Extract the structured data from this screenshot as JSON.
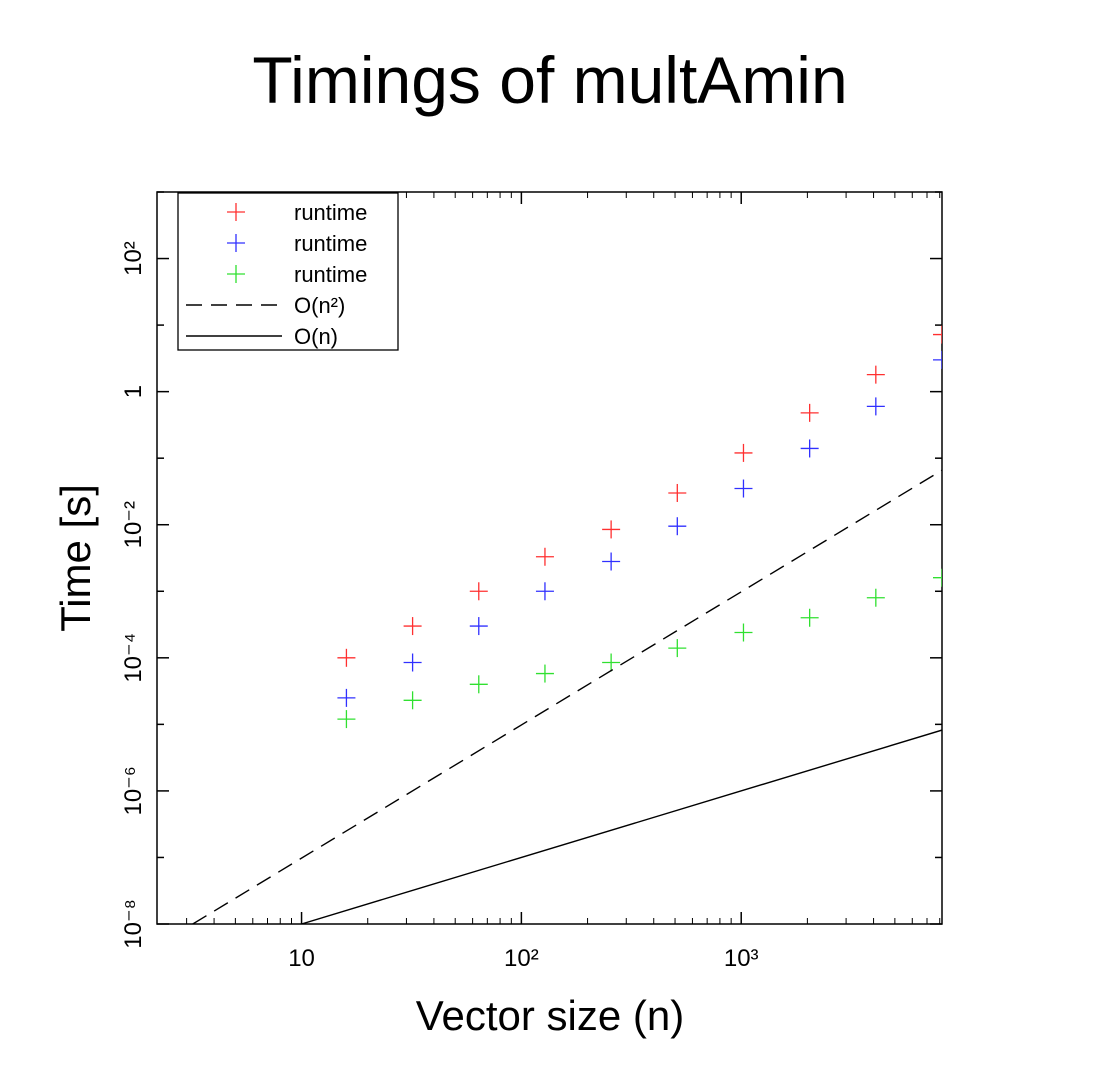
{
  "chart_data": {
    "type": "scatter",
    "title": "Timings of multAmin",
    "xlabel": "Vector size (n)",
    "ylabel": "Time [s]",
    "xscale": "log",
    "yscale": "log",
    "xlim": [
      2.2,
      8192
    ],
    "ylim": [
      1e-08,
      1000
    ],
    "grid": false,
    "legend_position": "top-left",
    "xticks": [
      {
        "value": 10,
        "label": "10"
      },
      {
        "value": 100,
        "label": "10²"
      },
      {
        "value": 1000,
        "label": "10³"
      }
    ],
    "yticks": [
      {
        "value": 1e-08,
        "label": "10⁻⁸"
      },
      {
        "value": 1e-06,
        "label": "10⁻⁶"
      },
      {
        "value": 0.0001,
        "label": "10⁻⁴"
      },
      {
        "value": 0.01,
        "label": "10⁻²"
      },
      {
        "value": 1,
        "label": "1"
      },
      {
        "value": 100,
        "label": "10²"
      }
    ],
    "series": [
      {
        "name": "runtime",
        "kind": "points",
        "marker": "plus",
        "color": "#ff3030",
        "x": [
          16,
          32,
          64,
          128,
          256,
          512,
          1024,
          2048,
          4096,
          8192
        ],
        "y": [
          0.0001,
          0.0003,
          0.001,
          0.0033,
          0.0085,
          0.03,
          0.12,
          0.48,
          1.8,
          7.2
        ]
      },
      {
        "name": "runtime",
        "kind": "points",
        "marker": "plus",
        "color": "#3030ff",
        "x": [
          16,
          32,
          64,
          128,
          256,
          512,
          1024,
          2048,
          4096,
          8192
        ],
        "y": [
          2.5e-05,
          8.5e-05,
          0.0003,
          0.001,
          0.0028,
          0.0095,
          0.035,
          0.14,
          0.6,
          3.0
        ]
      },
      {
        "name": "runtime",
        "kind": "points",
        "marker": "plus",
        "color": "#30e030",
        "x": [
          16,
          32,
          64,
          128,
          256,
          512,
          1024,
          2048,
          4096,
          8192
        ],
        "y": [
          1.2e-05,
          2.3e-05,
          4e-05,
          5.8e-05,
          8.5e-05,
          0.00014,
          0.00024,
          0.0004,
          0.0008,
          0.0016
        ]
      },
      {
        "name": "O(n²)",
        "kind": "line",
        "dash": "dashed",
        "color": "#000000",
        "x": [
          3.2,
          8192
        ],
        "y": [
          1e-08,
          0.066
        ]
      },
      {
        "name": "O(n)",
        "kind": "line",
        "dash": "solid",
        "color": "#000000",
        "x": [
          10,
          8192
        ],
        "y": [
          1e-08,
          8.2e-06
        ]
      }
    ]
  }
}
